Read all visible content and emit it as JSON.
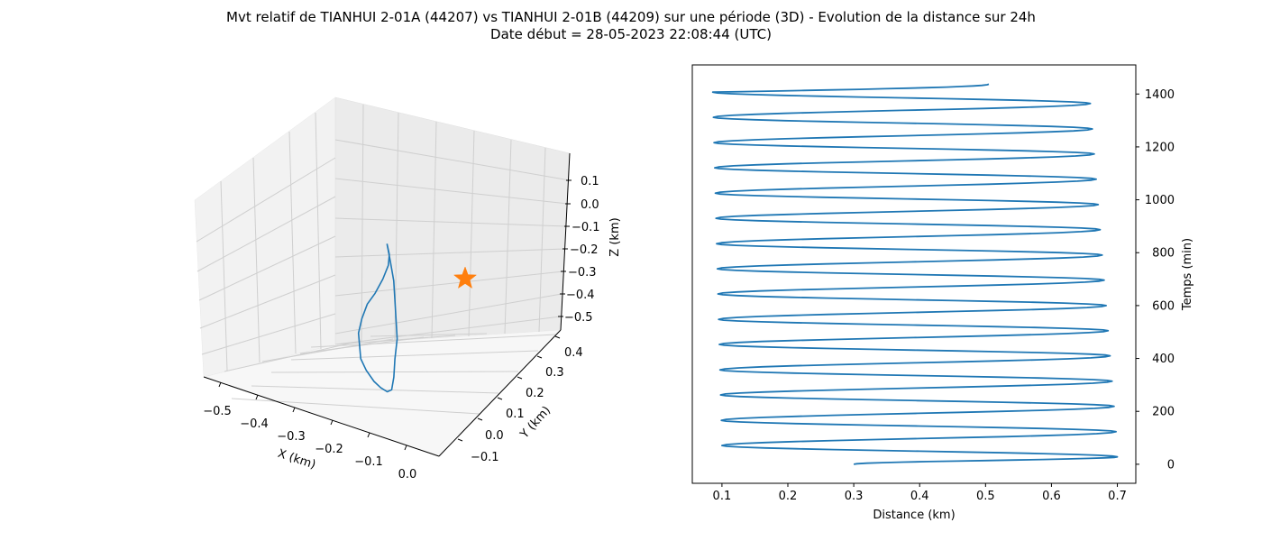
{
  "figure": {
    "title_line1": "Mvt relatif de TIANHUI 2-01A (44207) vs TIANHUI 2-01B (44209) sur une période (3D) - Evolution de la distance sur 24h",
    "title_line2": "Date début = 28-05-2023 22:08:44 (UTC)"
  },
  "chart_data": [
    {
      "type": "line",
      "projection": "3d",
      "xlabel": "X (km)",
      "ylabel": "Y (km)",
      "zlabel": "Z (km)",
      "x_ticks": [
        "−0.5",
        "−0.4",
        "−0.3",
        "−0.2",
        "−0.1",
        "0.0"
      ],
      "y_ticks": [
        "−0.1",
        "0.0",
        "0.1",
        "0.2",
        "0.3",
        "0.4"
      ],
      "z_ticks": [
        "0.1",
        "0.0",
        "−0.1",
        "−0.2",
        "−0.3",
        "−0.4",
        "−0.5"
      ],
      "grid": true,
      "series": [
        {
          "color": "#1f77b4",
          "trajectory": [
            [
              -0.13,
              0.3,
              0.1
            ],
            [
              -0.14,
              0.25,
              0.06
            ],
            [
              -0.16,
              0.2,
              0.02
            ],
            [
              -0.2,
              0.13,
              -0.03
            ],
            [
              -0.25,
              0.05,
              -0.08
            ],
            [
              -0.29,
              0.0,
              -0.12
            ],
            [
              -0.32,
              -0.04,
              -0.18
            ],
            [
              -0.34,
              -0.07,
              -0.24
            ],
            [
              -0.34,
              -0.08,
              -0.3
            ],
            [
              -0.33,
              -0.06,
              -0.36
            ],
            [
              -0.3,
              -0.02,
              -0.42
            ],
            [
              -0.26,
              0.03,
              -0.48
            ],
            [
              -0.22,
              0.09,
              -0.52
            ],
            [
              -0.18,
              0.15,
              -0.55
            ],
            [
              -0.15,
              0.2,
              -0.55
            ],
            [
              -0.13,
              0.24,
              -0.5
            ],
            [
              -0.12,
              0.26,
              -0.42
            ],
            [
              -0.11,
              0.27,
              -0.33
            ],
            [
              -0.11,
              0.28,
              -0.24
            ],
            [
              -0.11,
              0.29,
              -0.15
            ],
            [
              -0.11,
              0.3,
              -0.07
            ],
            [
              -0.12,
              0.3,
              0.02
            ],
            [
              -0.13,
              0.3,
              0.1
            ]
          ]
        }
      ],
      "marker": {
        "shape": "star",
        "color": "#ff7f0e",
        "x": 0.0,
        "y": 0.0,
        "z": 0.0
      }
    },
    {
      "type": "line",
      "xlabel": "Distance (km)",
      "ylabel": "Temps (min)",
      "xlim": [
        0.055,
        0.728
      ],
      "ylim": [
        -72,
        1510
      ],
      "x_ticks": [
        "0.1",
        "0.2",
        "0.3",
        "0.4",
        "0.5",
        "0.6",
        "0.7"
      ],
      "y_ticks": [
        "0",
        "200",
        "400",
        "600",
        "800",
        "1000",
        "1200",
        "1400"
      ],
      "y_axis_side": "right",
      "grid": false,
      "series": [
        {
          "color": "#1f77b4",
          "start": [
            0.3,
            0
          ],
          "max_distance_points": [
            [
              0.7,
              28
            ],
            [
              0.698,
              123
            ],
            [
              0.695,
              219
            ],
            [
              0.692,
              314
            ],
            [
              0.689,
              410
            ],
            [
              0.686,
              505
            ],
            [
              0.683,
              600
            ],
            [
              0.68,
              696
            ],
            [
              0.677,
              791
            ],
            [
              0.674,
              887
            ],
            [
              0.671,
              982
            ],
            [
              0.668,
              1078
            ],
            [
              0.665,
              1173
            ],
            [
              0.662,
              1268
            ],
            [
              0.659,
              1364
            ]
          ],
          "min_distance_points": [
            [
              0.1,
              71
            ],
            [
              0.099,
              166
            ],
            [
              0.098,
              262
            ],
            [
              0.097,
              357
            ],
            [
              0.096,
              453
            ],
            [
              0.095,
              548
            ],
            [
              0.094,
              644
            ],
            [
              0.093,
              739
            ],
            [
              0.092,
              834
            ],
            [
              0.091,
              930
            ],
            [
              0.09,
              1025
            ],
            [
              0.089,
              1121
            ],
            [
              0.088,
              1216
            ],
            [
              0.087,
              1312
            ],
            [
              0.086,
              1407
            ]
          ],
          "end": [
            0.505,
            1437
          ]
        }
      ]
    }
  ]
}
